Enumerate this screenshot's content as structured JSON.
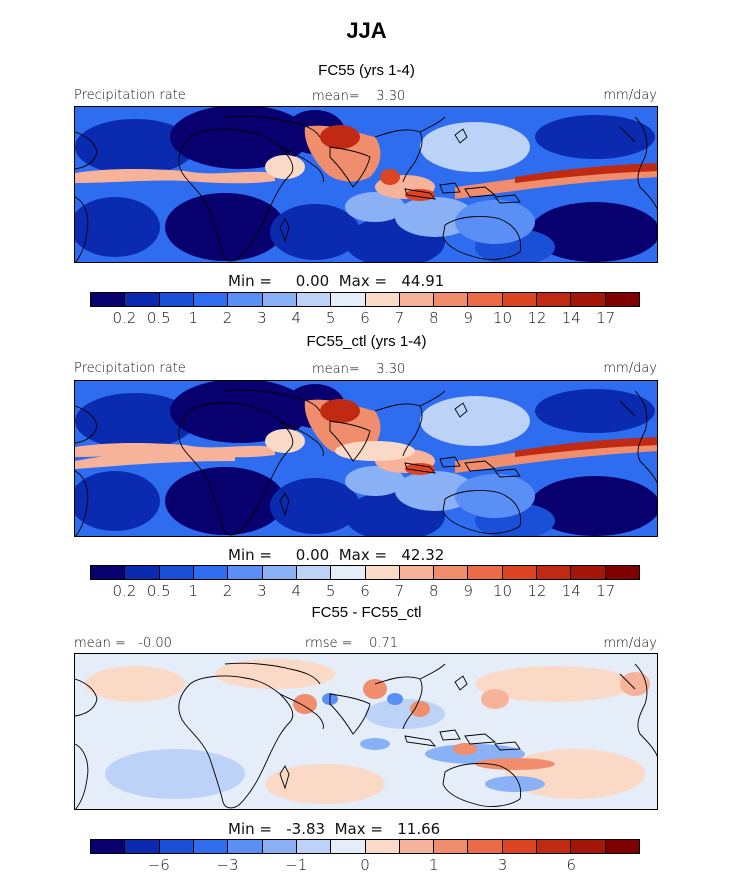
{
  "title": "JJA",
  "palette": [
    "#08006e",
    "#0a2bb0",
    "#1a4fd8",
    "#2f6df0",
    "#5a8ff5",
    "#8ab0f5",
    "#bcd3f7",
    "#e4edf8",
    "#fbd9c7",
    "#f7b39a",
    "#f08d6c",
    "#eb6a47",
    "#dd4422",
    "#c12a12",
    "#a31608",
    "#800000"
  ],
  "panels": [
    {
      "subtitle": "FC55 (yrs 1-4)",
      "left_label": "Precipitation rate",
      "center_label": "mean=    3.30",
      "right_label": "mm/day",
      "minmax": "Min =     0.00  Max =   44.91",
      "ticks": [
        "0.2",
        "0.5",
        "1",
        "2",
        "3",
        "4",
        "5",
        "6",
        "7",
        "8",
        "9",
        "10",
        "12",
        "14",
        "17"
      ],
      "field": "precip"
    },
    {
      "subtitle": "FC55_ctl (yrs 1-4)",
      "left_label": "Precipitation rate",
      "center_label": "mean=    3.30",
      "right_label": "mm/day",
      "minmax": "Min =     0.00  Max =   42.32",
      "ticks": [
        "0.2",
        "0.5",
        "1",
        "2",
        "3",
        "4",
        "5",
        "6",
        "7",
        "8",
        "9",
        "10",
        "12",
        "14",
        "17"
      ],
      "field": "precip"
    },
    {
      "subtitle": "FC55 - FC55_ctl",
      "left_label": "mean =   -0.00",
      "center_label": "rmse =    0.71",
      "right_label": "mm/day",
      "minmax": "Min =   -3.83  Max =   11.66",
      "ticks": [
        "-6",
        "-3",
        "-1",
        "0",
        "1",
        "3",
        "6"
      ],
      "field": "diff"
    }
  ]
}
